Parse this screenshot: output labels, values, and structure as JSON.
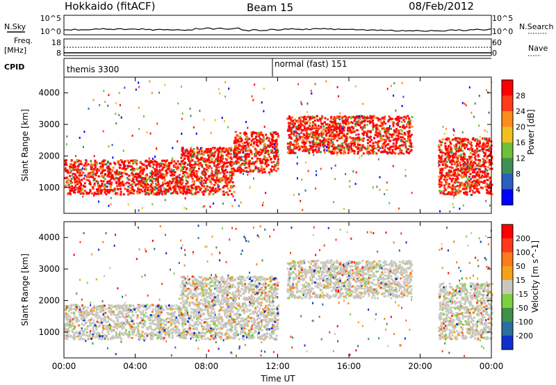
{
  "header": {
    "station": "Hokkaido (fitACF)",
    "beam": "Beam 15",
    "date": "08/Feb/2012"
  },
  "top_panels": {
    "nsky_label": "N.Sky",
    "nsky_ticks": [
      "10^5",
      "10^0"
    ],
    "nsearch_label": "N.Search",
    "nsearch_ticks": [
      "10^5",
      "10^0"
    ],
    "freq_label": "Freq.",
    "freq_unit": "[MHz]",
    "freq_ticks": [
      "18",
      "8"
    ],
    "nave_label": "Nave",
    "nave_ticks": [
      "60",
      "0"
    ],
    "cpid_label": "CPID",
    "cpid_segments": [
      {
        "name": "themis 3300",
        "start_hour": 0,
        "end_hour": 12
      },
      {
        "name": "normal (fast) 151",
        "start_hour": 12,
        "end_hour": 24
      }
    ]
  },
  "chart_data": [
    {
      "type": "heatmap",
      "title": "",
      "xlabel": "Time UT",
      "ylabel": "Slant Range [km]",
      "x_ticks": [
        "00:00",
        "04:00",
        "08:00",
        "12:00",
        "16:00",
        "20:00",
        "00:00"
      ],
      "y_ticks": [
        "1000",
        "2000",
        "3000",
        "4000"
      ],
      "xlim_hours": [
        0,
        24
      ],
      "ylim_km": [
        180,
        4500
      ],
      "colorbar": {
        "label": "Power [dB]",
        "ticks": [
          "4",
          "8",
          "12",
          "16",
          "20",
          "24",
          "28"
        ],
        "range": [
          0,
          30
        ],
        "colors": [
          "#0000ff",
          "#2a5fbf",
          "#3f8f55",
          "#6fbf3a",
          "#f0c020",
          "#ff8c1a",
          "#ff3b1a",
          "#ff0000"
        ]
      },
      "echo_regions": [
        {
          "start_hour": 0.0,
          "end_hour": 6.5,
          "range_low_km": 800,
          "range_high_km": 1900,
          "level": "red"
        },
        {
          "start_hour": 6.5,
          "end_hour": 9.5,
          "range_low_km": 800,
          "range_high_km": 2300,
          "level": "red"
        },
        {
          "start_hour": 9.5,
          "end_hour": 12.0,
          "range_low_km": 1500,
          "range_high_km": 2800,
          "level": "mixed"
        },
        {
          "start_hour": 12.5,
          "end_hour": 19.5,
          "range_low_km": 2100,
          "range_high_km": 3300,
          "level": "red"
        },
        {
          "start_hour": 21.0,
          "end_hour": 24.0,
          "range_low_km": 800,
          "range_high_km": 2600,
          "level": "red"
        }
      ]
    },
    {
      "type": "heatmap",
      "title": "",
      "xlabel": "Time UT",
      "ylabel": "Slant Range [km]",
      "x_ticks": [
        "00:00",
        "04:00",
        "08:00",
        "12:00",
        "16:00",
        "20:00",
        "00:00"
      ],
      "y_ticks": [
        "1000",
        "2000",
        "3000",
        "4000"
      ],
      "xlim_hours": [
        0,
        24
      ],
      "ylim_km": [
        180,
        4500
      ],
      "colorbar": {
        "label": "Velocity [m s^-1]",
        "ticks": [
          "200",
          "100",
          "50",
          "15",
          "-15",
          "-50",
          "-100",
          "-200"
        ],
        "range": [
          -250,
          250
        ],
        "colors": [
          "#1030d0",
          "#2c6e9e",
          "#3f8f4a",
          "#7ed040",
          "#c8c8c0",
          "#f5a21a",
          "#ff7a1a",
          "#ff3a1a",
          "#ff0000"
        ]
      },
      "echo_regions": [
        {
          "start_hour": 0.0,
          "end_hour": 6.5,
          "range_low_km": 800,
          "range_high_km": 1900,
          "level": "low-velocity"
        },
        {
          "start_hour": 6.5,
          "end_hour": 12.0,
          "range_low_km": 800,
          "range_high_km": 2800,
          "level": "low-velocity"
        },
        {
          "start_hour": 12.5,
          "end_hour": 19.5,
          "range_low_km": 2100,
          "range_high_km": 3300,
          "level": "low-velocity"
        },
        {
          "start_hour": 21.0,
          "end_hour": 24.0,
          "range_low_km": 800,
          "range_high_km": 2600,
          "level": "low-velocity"
        }
      ]
    }
  ]
}
